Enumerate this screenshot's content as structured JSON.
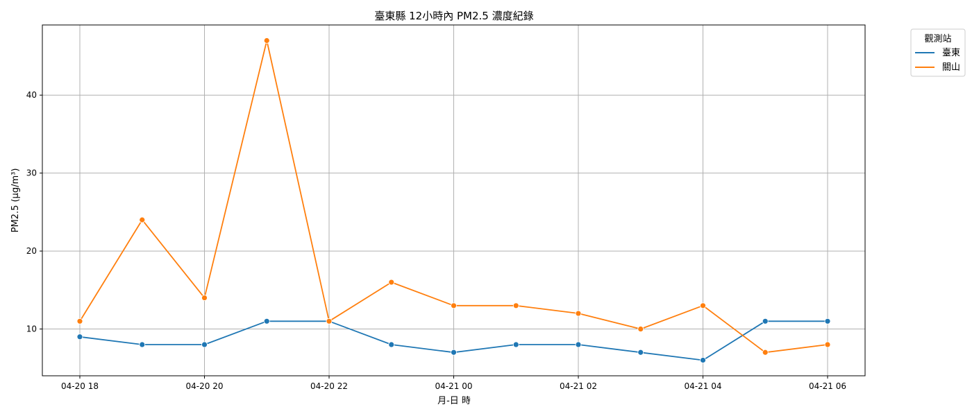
{
  "chart_data": {
    "type": "line",
    "title": "臺東縣 12小時內 PM2.5 濃度紀錄",
    "xlabel": "月-日 時",
    "ylabel": "PM2.5 (μg/m³)",
    "x": [
      "04-20 18:00",
      "04-20 19:00",
      "04-20 20:00",
      "04-20 21:00",
      "04-20 22:00",
      "04-20 23:00",
      "04-21 00:00",
      "04-21 01:00",
      "04-21 02:00",
      "04-21 03:00",
      "04-21 04:00",
      "04-21 05:00",
      "04-21 06:00"
    ],
    "xticks": [
      "04-20 18",
      "04-20 20",
      "04-20 22",
      "04-21 00",
      "04-21 02",
      "04-21 04",
      "04-21 06"
    ],
    "yticks": [
      10,
      20,
      30,
      40
    ],
    "ylim": [
      4,
      49
    ],
    "grid": true,
    "legend": {
      "title": "觀測站",
      "position": "outside top-right"
    },
    "series": [
      {
        "name": "臺東",
        "color": "#1f77b4",
        "values": [
          9,
          8,
          8,
          11,
          11,
          8,
          7,
          8,
          8,
          7,
          6,
          11,
          11
        ]
      },
      {
        "name": "關山",
        "color": "#ff7f0e",
        "values": [
          11,
          24,
          14,
          47,
          11,
          16,
          13,
          13,
          12,
          10,
          13,
          7,
          8
        ]
      }
    ]
  }
}
